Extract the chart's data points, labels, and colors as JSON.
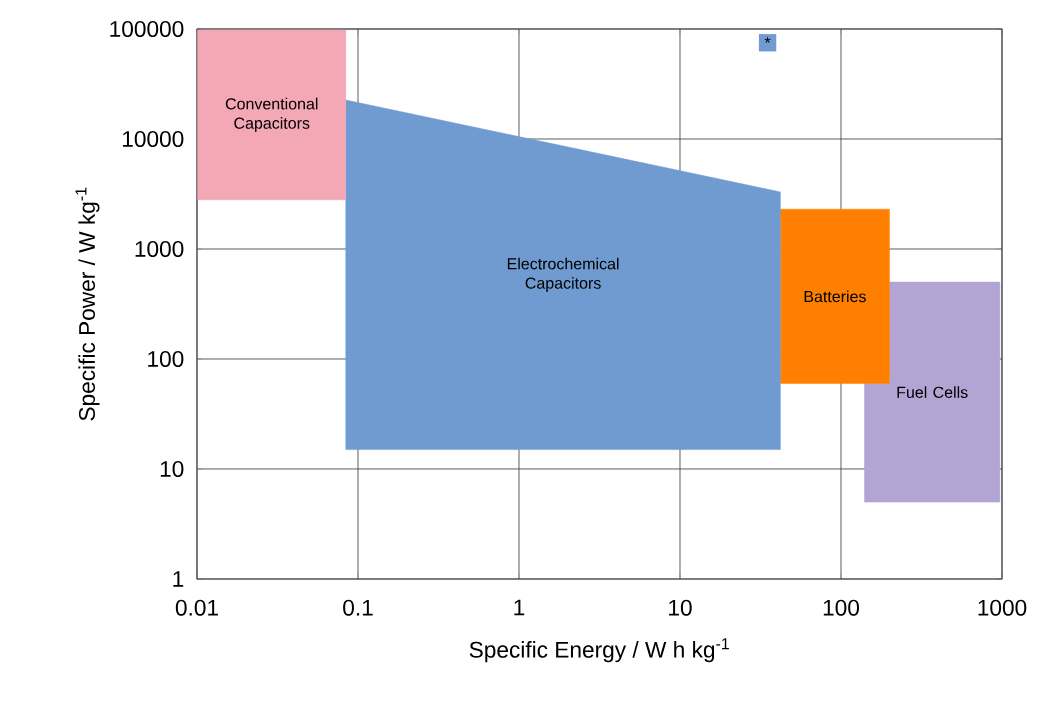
{
  "chart_data": {
    "type": "area",
    "xlabel": "Specific Energy / W h kg$^{-1}$",
    "ylabel": "Specific Power  / W kg$^{-1}$",
    "log": "xy",
    "grid": true,
    "xlim": [
      0.01,
      1000
    ],
    "ylim": [
      1,
      100000
    ],
    "xticks": [
      0.01,
      0.1,
      1,
      10,
      100,
      1000
    ],
    "yticks": [
      1,
      10,
      100,
      1000,
      10000,
      100000
    ],
    "series": [
      {
        "name": "Conventional Capacitors",
        "color": "#f4a7b5",
        "x": [
          0.0101,
          0.084,
          0.084,
          0.0101
        ],
        "values": [
          98000,
          98000,
          2800,
          2800
        ]
      },
      {
        "name": "Electrochemical Capacitors",
        "color": "#6f9bd1",
        "x": [
          0.084,
          42,
          42,
          0.084
        ],
        "values": [
          22600,
          3300,
          15,
          15
        ]
      },
      {
        "name": "Batteries",
        "color": "#ff8000",
        "x": [
          42,
          200,
          200,
          42
        ],
        "values": [
          2300,
          2300,
          60,
          60
        ]
      },
      {
        "name": "Fuel Cells",
        "color": "#b4a4d4",
        "x": [
          200,
          970,
          970,
          140,
          140,
          200
        ],
        "values": [
          500,
          500,
          5,
          5,
          60,
          60
        ]
      }
    ],
    "annotations": [
      {
        "text": "*",
        "x": 35,
        "y": 75000
      }
    ]
  }
}
